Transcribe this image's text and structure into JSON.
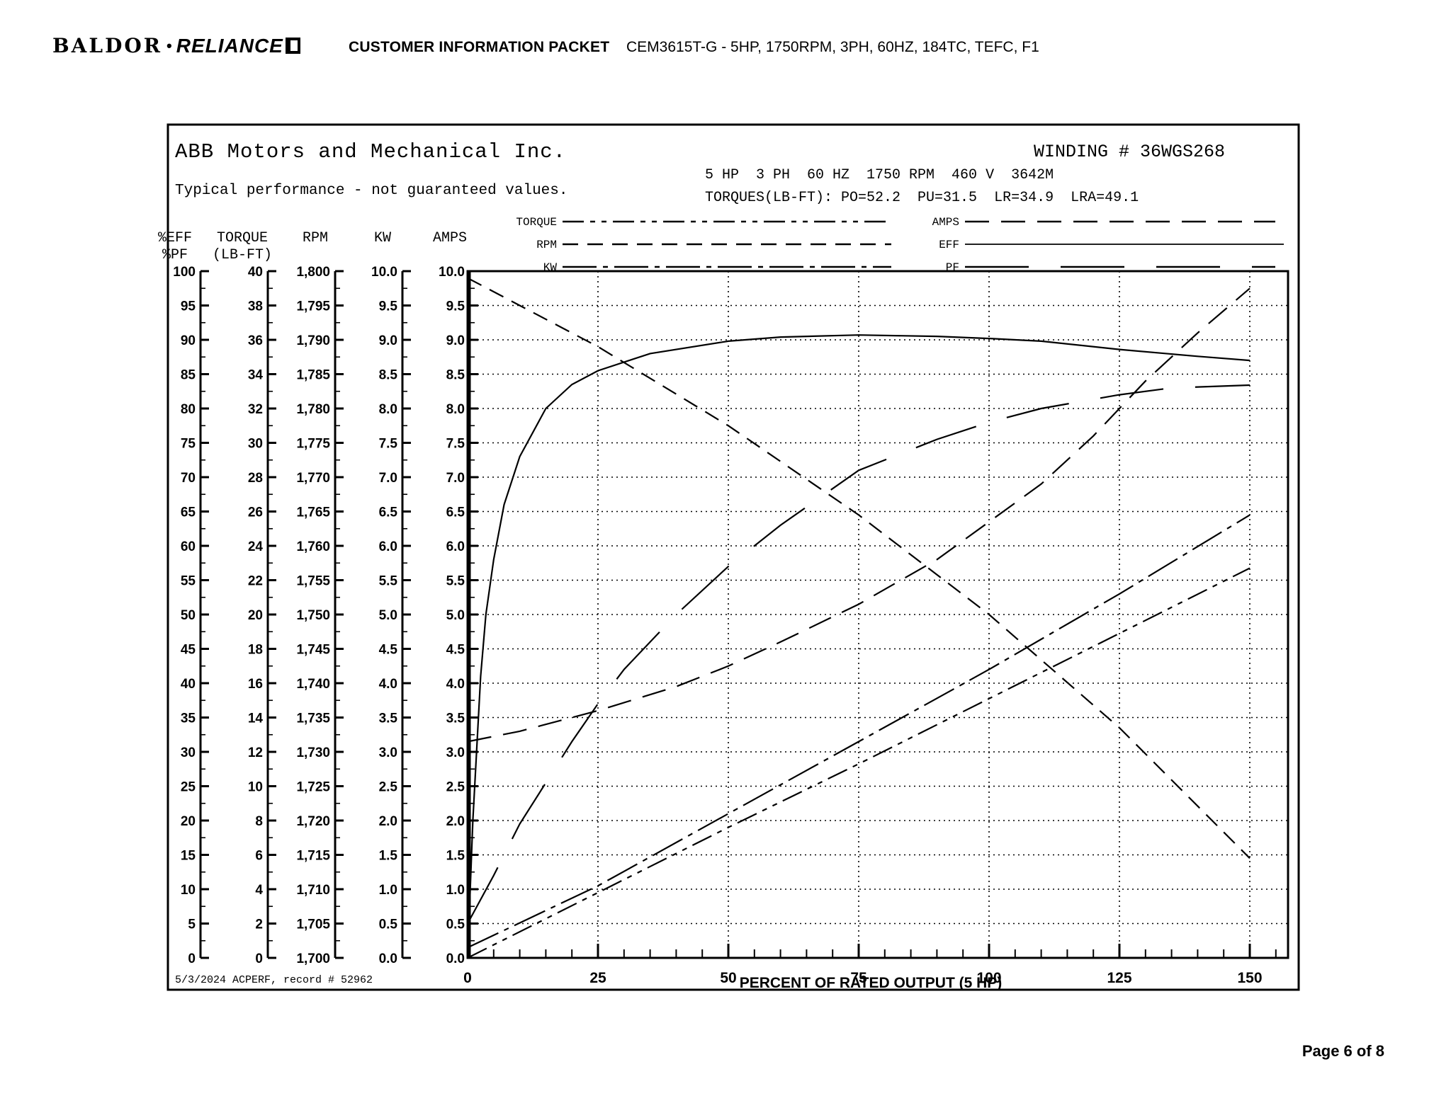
{
  "page": {
    "logo": {
      "brand1": "BALDOR",
      "brand2": "RELIANCE"
    },
    "header_title": "CUSTOMER INFORMATION PACKET",
    "header_subtitle": "CEM3615T-G - 5HP, 1750RPM, 3PH, 60HZ, 184TC, TEFC, F1",
    "page_number": "Page 6 of 8"
  },
  "chart": {
    "company": "ABB Motors and Mechanical Inc.",
    "winding": "WINDING # 36WGS268",
    "disclaimer": "Typical performance - not guaranteed values.",
    "spec_line": "5 HP  3 PH  60 HZ  1750 RPM  460 V  3642M",
    "torques_line": "TORQUES(LB-FT): PO=52.2  PU=31.5  LR=34.9  LRA=49.1",
    "footer_record": "5/3/2024 ACPERF, record # 52962"
  },
  "chart_data": {
    "type": "line",
    "title": "ABB Motors and Mechanical Inc. — WINDING # 36WGS268",
    "xlabel": "PERCENT OF RATED OUTPUT (5 HP)",
    "x_ticks": [
      "0",
      "25",
      "50",
      "75",
      "100",
      "125",
      "150"
    ],
    "x_range": [
      0,
      157
    ],
    "x_minor_step": 5,
    "grid": "dotted, horizontal every 0.5 unit, vertical every 25%",
    "legend_position": "top, two columns",
    "y_scales": [
      {
        "name": "eff-pf",
        "header": [
          "%EFF",
          "%PF"
        ],
        "axis_x": 283,
        "scale": "pct10",
        "labels": [
          "100",
          "95",
          "90",
          "85",
          "80",
          "75",
          "70",
          "65",
          "60",
          "55",
          "50",
          "45",
          "40",
          "35",
          "30",
          "25",
          "20",
          "15",
          "10",
          "5",
          "0"
        ]
      },
      {
        "name": "torque",
        "header": [
          "TORQUE",
          "(LB-FT)"
        ],
        "axis_x": 378,
        "scale": "torque40",
        "labels": [
          "40",
          "38",
          "36",
          "34",
          "32",
          "30",
          "28",
          "26",
          "24",
          "22",
          "20",
          "18",
          "16",
          "14",
          "12",
          "10",
          "8",
          "6",
          "4",
          "2",
          "0"
        ]
      },
      {
        "name": "rpm",
        "header": [
          "RPM"
        ],
        "axis_x": 473,
        "scale": "rpm100",
        "labels": [
          "1,800",
          "1,795",
          "1,790",
          "1,785",
          "1,780",
          "1,775",
          "1,770",
          "1,765",
          "1,760",
          "1,755",
          "1,750",
          "1,745",
          "1,740",
          "1,735",
          "1,730",
          "1,725",
          "1,720",
          "1,715",
          "1,710",
          "1,705",
          "1,700"
        ]
      },
      {
        "name": "kw",
        "header": [
          "KW"
        ],
        "axis_x": 568,
        "scale": "unit",
        "labels": [
          "10.0",
          "9.5",
          "9.0",
          "8.5",
          "8.0",
          "7.5",
          "7.0",
          "6.5",
          "6.0",
          "5.5",
          "5.0",
          "4.5",
          "4.0",
          "3.5",
          "3.0",
          "2.5",
          "2.0",
          "1.5",
          "1.0",
          "0.5",
          "0.0"
        ]
      },
      {
        "name": "amps",
        "header": [
          "AMPS"
        ],
        "axis_x": 663,
        "scale": "unit",
        "labels": [
          "10.0",
          "9.5",
          "9.0",
          "8.5",
          "8.0",
          "7.5",
          "7.0",
          "6.5",
          "6.0",
          "5.5",
          "5.0",
          "4.5",
          "4.0",
          "3.5",
          "3.0",
          "2.5",
          "2.0",
          "1.5",
          "1.0",
          "0.5",
          "0.0"
        ]
      }
    ],
    "series": [
      {
        "name": "TORQUE",
        "units": "lb-ft",
        "scale": "torque40",
        "dash": "30 9 7 9 7 9",
        "points": [
          [
            0,
            0
          ],
          [
            25,
            3.8
          ],
          [
            50,
            7.6
          ],
          [
            75,
            11.3
          ],
          [
            100,
            15.1
          ],
          [
            125,
            18.9
          ],
          [
            150,
            22.7
          ]
        ]
      },
      {
        "name": "RPM",
        "units": "rpm",
        "scale": "rpm100",
        "dash": "22 13",
        "points": [
          [
            0,
            1799
          ],
          [
            25,
            1789
          ],
          [
            50,
            1777.5
          ],
          [
            75,
            1764.5
          ],
          [
            100,
            1750
          ],
          [
            125,
            1733.5
          ],
          [
            150,
            1714.5
          ]
        ]
      },
      {
        "name": "KW",
        "units": "kW",
        "scale": "unit",
        "dash": "48 9 7 9",
        "points": [
          [
            0,
            0.15
          ],
          [
            25,
            1.05
          ],
          [
            50,
            2.1
          ],
          [
            75,
            3.15
          ],
          [
            100,
            4.2
          ],
          [
            125,
            5.3
          ],
          [
            150,
            6.45
          ]
        ]
      },
      {
        "name": "AMPS",
        "units": "A",
        "scale": "unit",
        "dash": "34 17",
        "points": [
          [
            0,
            3.15
          ],
          [
            10,
            3.3
          ],
          [
            25,
            3.6
          ],
          [
            40,
            3.95
          ],
          [
            50,
            4.25
          ],
          [
            60,
            4.6
          ],
          [
            75,
            5.15
          ],
          [
            90,
            5.8
          ],
          [
            100,
            6.35
          ],
          [
            110,
            6.9
          ],
          [
            120,
            7.6
          ],
          [
            130,
            8.4
          ],
          [
            140,
            9.1
          ],
          [
            150,
            9.75
          ]
        ]
      },
      {
        "name": "EFF",
        "units": "%",
        "scale": "pct10",
        "dash": "",
        "points": [
          [
            0,
            0
          ],
          [
            0.5,
            10
          ],
          [
            1,
            20
          ],
          [
            2.5,
            41
          ],
          [
            3.5,
            50
          ],
          [
            5,
            58
          ],
          [
            7,
            66
          ],
          [
            10,
            73
          ],
          [
            15,
            80
          ],
          [
            20,
            83.5
          ],
          [
            25,
            85.5
          ],
          [
            35,
            88
          ],
          [
            50,
            89.8
          ],
          [
            60,
            90.4
          ],
          [
            75,
            90.7
          ],
          [
            90,
            90.5
          ],
          [
            100,
            90.2
          ],
          [
            110,
            89.8
          ],
          [
            125,
            88.6
          ],
          [
            140,
            87.6
          ],
          [
            150,
            87
          ]
        ]
      },
      {
        "name": "PF",
        "units": "%",
        "scale": "pct10",
        "dash": "90 45",
        "points": [
          [
            0,
            5
          ],
          [
            5,
            12
          ],
          [
            10,
            19.5
          ],
          [
            15,
            25.5
          ],
          [
            20,
            31.5
          ],
          [
            25,
            37
          ],
          [
            30,
            42
          ],
          [
            40,
            50
          ],
          [
            50,
            57
          ],
          [
            60,
            63
          ],
          [
            75,
            71
          ],
          [
            90,
            75.5
          ],
          [
            100,
            78
          ],
          [
            110,
            80
          ],
          [
            125,
            82
          ],
          [
            135,
            83
          ],
          [
            150,
            83.4
          ]
        ]
      }
    ],
    "legend": {
      "left_column": [
        "TORQUE",
        "RPM",
        "KW"
      ],
      "right_column": [
        "AMPS",
        "EFF",
        "PF"
      ]
    },
    "line_color": "#000000"
  }
}
